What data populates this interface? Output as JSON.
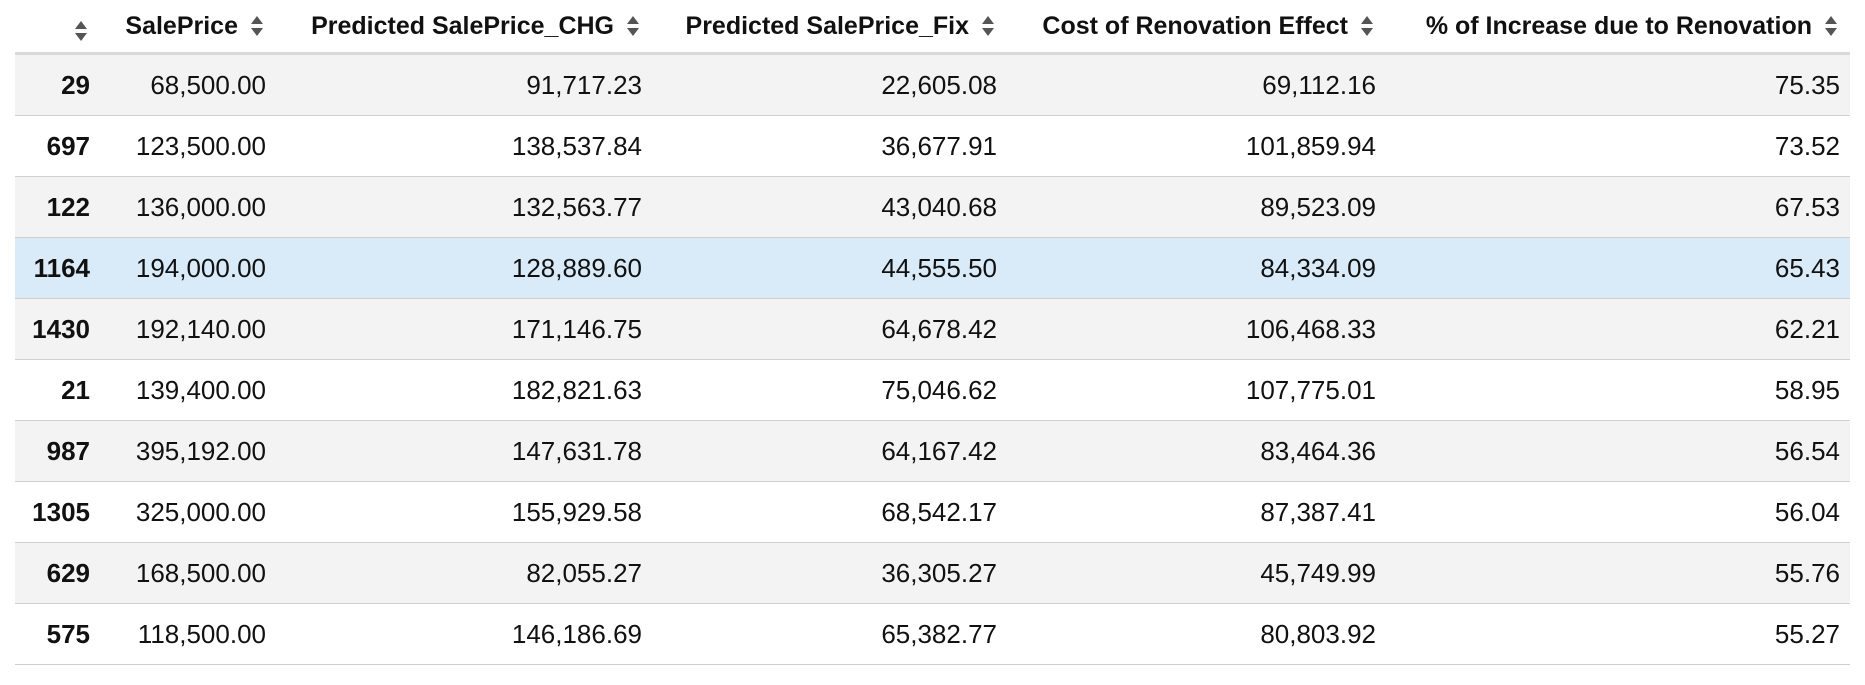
{
  "table": {
    "columns": [
      {
        "label": "",
        "sort_icon": "sort-icon"
      },
      {
        "label": "SalePrice",
        "sort_icon": "sort-icon"
      },
      {
        "label": "Predicted SalePrice_CHG",
        "sort_icon": "sort-icon"
      },
      {
        "label": "Predicted SalePrice_Fix",
        "sort_icon": "sort-icon"
      },
      {
        "label": "Cost of Renovation Effect",
        "sort_icon": "sort-icon"
      },
      {
        "label": "% of Increase due to Renovation",
        "sort_icon": "sort-icon"
      }
    ],
    "rows": [
      {
        "index": "29",
        "cells": [
          "68,500.00",
          "91,717.23",
          "22,605.08",
          "69,112.16",
          "75.35"
        ]
      },
      {
        "index": "697",
        "cells": [
          "123,500.00",
          "138,537.84",
          "36,677.91",
          "101,859.94",
          "73.52"
        ]
      },
      {
        "index": "122",
        "cells": [
          "136,000.00",
          "132,563.77",
          "43,040.68",
          "89,523.09",
          "67.53"
        ]
      },
      {
        "index": "1164",
        "cells": [
          "194,000.00",
          "128,889.60",
          "44,555.50",
          "84,334.09",
          "65.43"
        ],
        "highlighted": true
      },
      {
        "index": "1430",
        "cells": [
          "192,140.00",
          "171,146.75",
          "64,678.42",
          "106,468.33",
          "62.21"
        ]
      },
      {
        "index": "21",
        "cells": [
          "139,400.00",
          "182,821.63",
          "75,046.62",
          "107,775.01",
          "58.95"
        ]
      },
      {
        "index": "987",
        "cells": [
          "395,192.00",
          "147,631.78",
          "64,167.42",
          "83,464.36",
          "56.54"
        ]
      },
      {
        "index": "1305",
        "cells": [
          "325,000.00",
          "155,929.58",
          "68,542.17",
          "87,387.41",
          "56.04"
        ]
      },
      {
        "index": "629",
        "cells": [
          "168,500.00",
          "82,055.27",
          "36,305.27",
          "45,749.99",
          "55.76"
        ]
      },
      {
        "index": "575",
        "cells": [
          "118,500.00",
          "146,186.69",
          "65,382.77",
          "80,803.92",
          "55.27"
        ]
      }
    ]
  },
  "colors": {
    "row_striped": "#f3f3f3",
    "row_plain": "#ffffff",
    "row_highlight": "#d9ebf8",
    "border": "#cfcfcf",
    "header_border": "#d9d9d9"
  }
}
